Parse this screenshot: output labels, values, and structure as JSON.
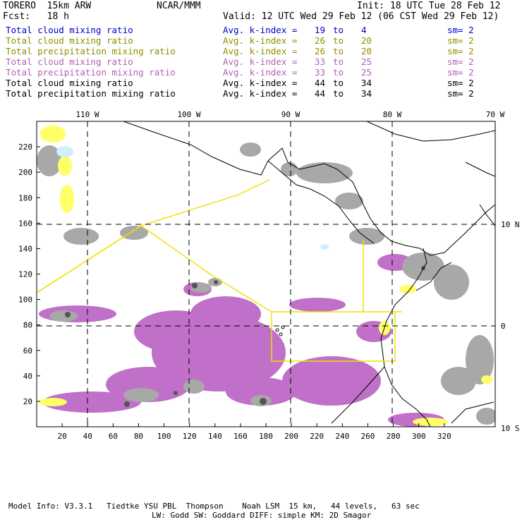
{
  "header": {
    "model": "TORERO  15km ARW",
    "org": "NCAR/MMM",
    "init": "Init: 18 UTC Tue 28 Feb 12",
    "fcst": "Fcst:   18 h",
    "valid": "Valid: 12 UTC Wed 29 Feb 12 (06 CST Wed 29 Feb 12)"
  },
  "legend": [
    {
      "field": "Total cloud mixing ratio",
      "avg": "Avg. k-index =",
      "from": "19",
      "to_word": "to",
      "to": "4",
      "sm": "sm= 2",
      "color": "#0000cc"
    },
    {
      "field": "Total cloud mixing ratio",
      "avg": "Avg. k-index =",
      "from": "26",
      "to_word": "to",
      "to": "20",
      "sm": "sm= 2",
      "color": "#8f8f00"
    },
    {
      "field": "Total precipitation mixing ratio",
      "avg": "Avg. k-index =",
      "from": "26",
      "to_word": "to",
      "to": "20",
      "sm": "sm= 2",
      "color": "#8f8f00"
    },
    {
      "field": "Total cloud mixing ratio",
      "avg": "Avg. k-index =",
      "from": "33",
      "to_word": "to",
      "to": "25",
      "sm": "sm= 2",
      "color": "#b25fb2"
    },
    {
      "field": "Total precipitation mixing ratio",
      "avg": "Avg. k-index =",
      "from": "33",
      "to_word": "to",
      "to": "25",
      "sm": "sm= 2",
      "color": "#b25fb2"
    },
    {
      "field": "Total cloud mixing ratio",
      "avg": "Avg. k-index =",
      "from": "44",
      "to_word": "to",
      "to": "34",
      "sm": "sm= 2",
      "color": "#000000"
    },
    {
      "field": "Total precipitation mixing ratio",
      "avg": "Avg. k-index =",
      "from": "44",
      "to_word": "to",
      "to": "34",
      "sm": "sm= 2",
      "color": "#000000"
    }
  ],
  "map": {
    "lon_labels": [
      "110 W",
      "100 W",
      "90 W",
      "80 W",
      "70 W"
    ],
    "lat_labels": [
      "10 N",
      "0",
      "10 S"
    ],
    "x_ticks": [
      "20",
      "40",
      "60",
      "80",
      "100",
      "120",
      "140",
      "160",
      "180",
      "200",
      "220",
      "240",
      "260",
      "280",
      "300",
      "320"
    ],
    "y_ticks": [
      "220",
      "200",
      "180",
      "160",
      "140",
      "120",
      "100",
      "80",
      "60",
      "40",
      "20"
    ],
    "colors": {
      "precip_purple": "#c070c8",
      "cloud_gray": "#a8a8a8",
      "dark_gray": "#555555",
      "yellow_fill": "#ffff66",
      "light_blue": "#cfeeff",
      "yellow_line": "#f0e000"
    }
  },
  "footer": {
    "line1": "Model Info: V3.3.1   Tiedtke YSU PBL  Thompson    Noah LSM  15 km,   44 levels,   63 sec",
    "line2": "LW: Godd SW: Goddard DIFF: simple KM: 2D Smagor"
  }
}
